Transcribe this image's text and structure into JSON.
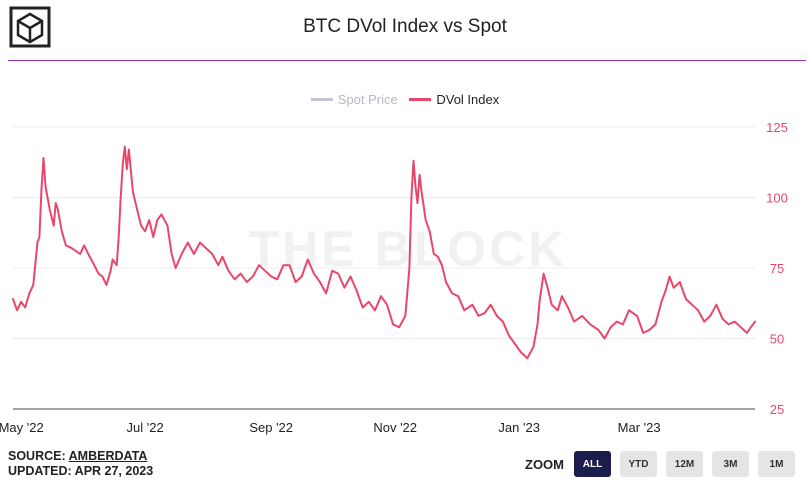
{
  "title": "BTC DVol Index vs Spot",
  "watermark": "THE BLOCK",
  "colors": {
    "dvol": "#e8476a",
    "spot": "#c4c2d8",
    "divider": "#9b2fb7",
    "zoom_active": "#1c1d4d"
  },
  "legend": {
    "spot": {
      "label": "Spot Price",
      "enabled": false
    },
    "dvol": {
      "label": "DVol Index",
      "enabled": true
    }
  },
  "footer": {
    "source_prefix": "SOURCE: ",
    "source_name": "AMBERDATA",
    "updated": "UPDATED: APR 27, 2023"
  },
  "zoom": {
    "label": "ZOOM",
    "buttons": [
      {
        "label": "ALL",
        "active": true
      },
      {
        "label": "YTD",
        "active": false
      },
      {
        "label": "12M",
        "active": false
      },
      {
        "label": "3M",
        "active": false
      },
      {
        "label": "1M",
        "active": false
      }
    ]
  },
  "chart_data": {
    "type": "line",
    "title": "BTC DVol Index vs Spot",
    "x_range": [
      "2022-04-27",
      "2023-04-27"
    ],
    "ylim": [
      25,
      125
    ],
    "y_ticks": [
      25,
      50,
      75,
      100,
      125
    ],
    "x_ticks": [
      {
        "label": "May '22",
        "date": "2022-05-01"
      },
      {
        "label": "Jul '22",
        "date": "2022-07-01"
      },
      {
        "label": "Sep '22",
        "date": "2022-09-01"
      },
      {
        "label": "Nov '22",
        "date": "2022-11-01"
      },
      {
        "label": "Jan '23",
        "date": "2023-01-01"
      },
      {
        "label": "Mar '23",
        "date": "2023-03-01"
      }
    ],
    "legend_position": "top-center",
    "grid": true,
    "series": [
      {
        "name": "Spot Price",
        "visible": false,
        "values": []
      },
      {
        "name": "DVol Index",
        "visible": true,
        "points": [
          [
            "2022-04-27",
            64
          ],
          [
            "2022-04-29",
            60
          ],
          [
            "2022-05-01",
            63
          ],
          [
            "2022-05-03",
            61
          ],
          [
            "2022-05-05",
            66
          ],
          [
            "2022-05-07",
            69
          ],
          [
            "2022-05-09",
            84
          ],
          [
            "2022-05-10",
            86
          ],
          [
            "2022-05-11",
            103
          ],
          [
            "2022-05-12",
            114
          ],
          [
            "2022-05-13",
            104
          ],
          [
            "2022-05-15",
            96
          ],
          [
            "2022-05-17",
            90
          ],
          [
            "2022-05-18",
            98
          ],
          [
            "2022-05-19",
            96
          ],
          [
            "2022-05-21",
            88
          ],
          [
            "2022-05-23",
            83
          ],
          [
            "2022-05-26",
            82
          ],
          [
            "2022-05-30",
            80
          ],
          [
            "2022-06-01",
            83
          ],
          [
            "2022-06-03",
            80
          ],
          [
            "2022-06-06",
            76
          ],
          [
            "2022-06-08",
            73
          ],
          [
            "2022-06-10",
            72
          ],
          [
            "2022-06-12",
            69
          ],
          [
            "2022-06-14",
            74
          ],
          [
            "2022-06-15",
            78
          ],
          [
            "2022-06-17",
            76
          ],
          [
            "2022-06-18",
            86
          ],
          [
            "2022-06-19",
            100
          ],
          [
            "2022-06-20",
            112
          ],
          [
            "2022-06-21",
            118
          ],
          [
            "2022-06-22",
            110
          ],
          [
            "2022-06-23",
            117
          ],
          [
            "2022-06-25",
            102
          ],
          [
            "2022-06-27",
            96
          ],
          [
            "2022-06-29",
            90
          ],
          [
            "2022-07-01",
            88
          ],
          [
            "2022-07-03",
            92
          ],
          [
            "2022-07-05",
            86
          ],
          [
            "2022-07-07",
            92
          ],
          [
            "2022-07-09",
            94
          ],
          [
            "2022-07-12",
            90
          ],
          [
            "2022-07-14",
            80
          ],
          [
            "2022-07-16",
            75
          ],
          [
            "2022-07-19",
            80
          ],
          [
            "2022-07-22",
            84
          ],
          [
            "2022-07-25",
            80
          ],
          [
            "2022-07-28",
            84
          ],
          [
            "2022-07-31",
            82
          ],
          [
            "2022-08-03",
            80
          ],
          [
            "2022-08-06",
            76
          ],
          [
            "2022-08-08",
            79
          ],
          [
            "2022-08-11",
            74
          ],
          [
            "2022-08-14",
            71
          ],
          [
            "2022-08-17",
            73
          ],
          [
            "2022-08-20",
            70
          ],
          [
            "2022-08-23",
            72
          ],
          [
            "2022-08-26",
            76
          ],
          [
            "2022-08-29",
            74
          ],
          [
            "2022-09-01",
            72
          ],
          [
            "2022-09-04",
            71
          ],
          [
            "2022-09-07",
            76
          ],
          [
            "2022-09-10",
            76
          ],
          [
            "2022-09-13",
            70
          ],
          [
            "2022-09-16",
            72
          ],
          [
            "2022-09-19",
            78
          ],
          [
            "2022-09-22",
            73
          ],
          [
            "2022-09-25",
            70
          ],
          [
            "2022-09-28",
            66
          ],
          [
            "2022-10-01",
            74
          ],
          [
            "2022-10-04",
            73
          ],
          [
            "2022-10-07",
            68
          ],
          [
            "2022-10-10",
            72
          ],
          [
            "2022-10-13",
            67
          ],
          [
            "2022-10-16",
            61
          ],
          [
            "2022-10-19",
            63
          ],
          [
            "2022-10-22",
            60
          ],
          [
            "2022-10-25",
            65
          ],
          [
            "2022-10-28",
            62
          ],
          [
            "2022-10-31",
            55
          ],
          [
            "2022-11-03",
            54
          ],
          [
            "2022-11-06",
            58
          ],
          [
            "2022-11-08",
            75
          ],
          [
            "2022-11-09",
            100
          ],
          [
            "2022-11-10",
            113
          ],
          [
            "2022-11-11",
            104
          ],
          [
            "2022-11-12",
            98
          ],
          [
            "2022-11-13",
            108
          ],
          [
            "2022-11-14",
            102
          ],
          [
            "2022-11-16",
            92
          ],
          [
            "2022-11-18",
            88
          ],
          [
            "2022-11-20",
            80
          ],
          [
            "2022-11-22",
            79
          ],
          [
            "2022-11-24",
            76
          ],
          [
            "2022-11-26",
            70
          ],
          [
            "2022-11-29",
            66
          ],
          [
            "2022-12-02",
            65
          ],
          [
            "2022-12-05",
            60
          ],
          [
            "2022-12-09",
            62
          ],
          [
            "2022-12-12",
            58
          ],
          [
            "2022-12-15",
            59
          ],
          [
            "2022-12-18",
            62
          ],
          [
            "2022-12-21",
            58
          ],
          [
            "2022-12-24",
            56
          ],
          [
            "2022-12-27",
            51
          ],
          [
            "2022-12-30",
            48
          ],
          [
            "2023-01-02",
            45
          ],
          [
            "2023-01-05",
            43
          ],
          [
            "2023-01-08",
            47
          ],
          [
            "2023-01-10",
            55
          ],
          [
            "2023-01-11",
            63
          ],
          [
            "2023-01-13",
            73
          ],
          [
            "2023-01-15",
            68
          ],
          [
            "2023-01-17",
            62
          ],
          [
            "2023-01-20",
            60
          ],
          [
            "2023-01-22",
            65
          ],
          [
            "2023-01-25",
            61
          ],
          [
            "2023-01-28",
            56
          ],
          [
            "2023-02-01",
            58
          ],
          [
            "2023-02-05",
            55
          ],
          [
            "2023-02-09",
            53
          ],
          [
            "2023-02-12",
            50
          ],
          [
            "2023-02-15",
            54
          ],
          [
            "2023-02-18",
            56
          ],
          [
            "2023-02-21",
            55
          ],
          [
            "2023-02-24",
            60
          ],
          [
            "2023-02-28",
            58
          ],
          [
            "2023-03-03",
            52
          ],
          [
            "2023-03-06",
            53
          ],
          [
            "2023-03-09",
            55
          ],
          [
            "2023-03-12",
            63
          ],
          [
            "2023-03-14",
            67
          ],
          [
            "2023-03-16",
            72
          ],
          [
            "2023-03-18",
            68
          ],
          [
            "2023-03-21",
            70
          ],
          [
            "2023-03-24",
            64
          ],
          [
            "2023-03-27",
            62
          ],
          [
            "2023-03-30",
            60
          ],
          [
            "2023-04-02",
            56
          ],
          [
            "2023-04-05",
            58
          ],
          [
            "2023-04-08",
            62
          ],
          [
            "2023-04-11",
            57
          ],
          [
            "2023-04-14",
            55
          ],
          [
            "2023-04-17",
            56
          ],
          [
            "2023-04-20",
            54
          ],
          [
            "2023-04-23",
            52
          ],
          [
            "2023-04-25",
            54
          ],
          [
            "2023-04-27",
            56
          ]
        ]
      }
    ]
  }
}
